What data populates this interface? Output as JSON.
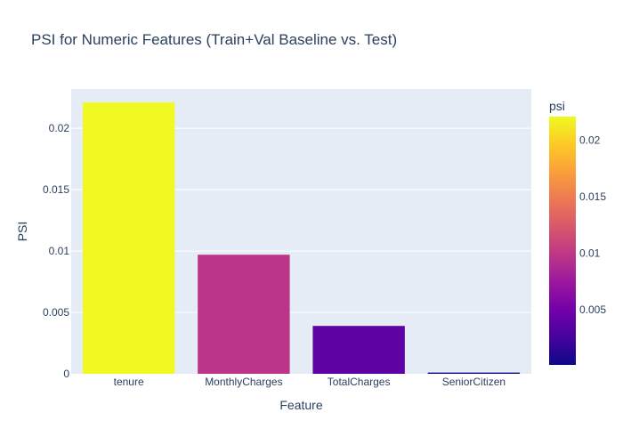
{
  "chart_data": {
    "type": "bar",
    "title": "PSI for Numeric Features (Train+Val Baseline vs. Test)",
    "xlabel": "Feature",
    "ylabel": "PSI",
    "categories": [
      "tenure",
      "MonthlyCharges",
      "TotalCharges",
      "SeniorCitizen"
    ],
    "values": [
      0.0221,
      0.0097,
      0.0039,
      0.0001
    ],
    "ylim": [
      0,
      0.0232
    ],
    "yticks": [
      {
        "value": 0,
        "label": "0"
      },
      {
        "value": 0.005,
        "label": "0.005"
      },
      {
        "value": 0.01,
        "label": "0.01"
      },
      {
        "value": 0.015,
        "label": "0.015"
      },
      {
        "value": 0.02,
        "label": "0.02"
      }
    ],
    "colorbar": {
      "title": "psi",
      "range": [
        0.0001,
        0.0221
      ],
      "ticks": [
        {
          "value": 0.005,
          "label": "0.005"
        },
        {
          "value": 0.01,
          "label": "0.01"
        },
        {
          "value": 0.015,
          "label": "0.015"
        },
        {
          "value": 0.02,
          "label": "0.02"
        }
      ],
      "colorscale": [
        "#0d0887",
        "#46039f",
        "#7201a8",
        "#9c179e",
        "#bd3786",
        "#d8576b",
        "#ed7953",
        "#fb9f3a",
        "#fdca26",
        "#f0f921"
      ]
    },
    "grid": true,
    "plot_bgcolor": "#e5ecf6"
  }
}
